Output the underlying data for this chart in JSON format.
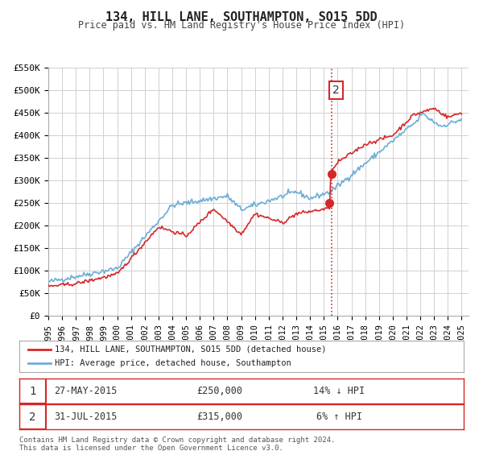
{
  "title": "134, HILL LANE, SOUTHAMPTON, SO15 5DD",
  "subtitle": "Price paid vs. HM Land Registry's House Price Index (HPI)",
  "xlabel": "",
  "ylabel": "",
  "ylim": [
    0,
    550000
  ],
  "yticks": [
    0,
    50000,
    100000,
    150000,
    200000,
    250000,
    300000,
    350000,
    400000,
    450000,
    500000,
    550000
  ],
  "ytick_labels": [
    "£0",
    "£50K",
    "£100K",
    "£150K",
    "£200K",
    "£250K",
    "£300K",
    "£350K",
    "£400K",
    "£450K",
    "£500K",
    "£550K"
  ],
  "xlim_start": 1995.0,
  "xlim_end": 2025.5,
  "xticks": [
    1995,
    1996,
    1997,
    1998,
    1999,
    2000,
    2001,
    2002,
    2003,
    2004,
    2005,
    2006,
    2007,
    2008,
    2009,
    2010,
    2011,
    2012,
    2013,
    2014,
    2015,
    2016,
    2017,
    2018,
    2019,
    2020,
    2021,
    2022,
    2023,
    2024,
    2025
  ],
  "hpi_color": "#6baed6",
  "price_color": "#d62728",
  "vline_x": 2015.58,
  "vline_color": "#d62728",
  "marker1_x": 2015.41,
  "marker1_y": 250000,
  "marker2_x": 2015.58,
  "marker2_y": 315000,
  "legend_label1": "134, HILL LANE, SOUTHAMPTON, SO15 5DD (detached house)",
  "legend_label2": "HPI: Average price, detached house, Southampton",
  "table_row1": [
    "1",
    "27-MAY-2015",
    "£250,000",
    "14% ↓ HPI"
  ],
  "table_row2": [
    "2",
    "31-JUL-2015",
    "£315,000",
    "6% ↑ HPI"
  ],
  "footer": "Contains HM Land Registry data © Crown copyright and database right 2024.\nThis data is licensed under the Open Government Licence v3.0.",
  "bg_color": "#ffffff",
  "grid_color": "#d0d0d0",
  "annotation2_label": "2"
}
